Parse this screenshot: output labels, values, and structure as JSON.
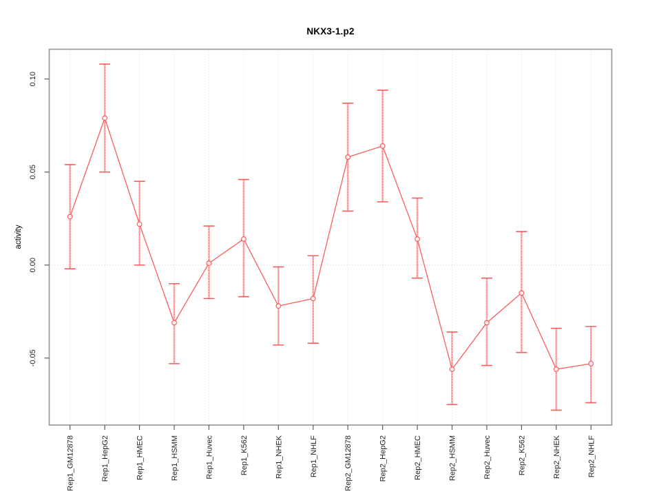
{
  "chart_data": {
    "type": "line",
    "title": "NKX3-1.p2",
    "xlabel": "",
    "ylabel": "activity",
    "legend_position": "none",
    "categories": [
      "Rep1_GM12878",
      "Rep1_HepG2",
      "Rep1_HMEC",
      "Rep1_HSMM",
      "Rep1_Huvec",
      "Rep1_K562",
      "Rep1_NHEK",
      "Rep1_NHLF",
      "Rep2_GM12878",
      "Rep2_HepG2",
      "Rep2_HMEC",
      "Rep2_HSMM",
      "Rep2_Huvec",
      "Rep2_K562",
      "Rep2_NHEK",
      "Rep2_NHLF"
    ],
    "series": [
      {
        "name": "activity",
        "values": [
          0.026,
          0.079,
          0.022,
          -0.031,
          0.001,
          0.014,
          -0.022,
          -0.018,
          0.058,
          0.064,
          0.014,
          -0.056,
          -0.031,
          -0.015,
          -0.056,
          -0.053
        ],
        "err_high": [
          0.054,
          0.108,
          0.045,
          -0.01,
          0.021,
          0.046,
          -0.001,
          0.005,
          0.087,
          0.094,
          0.036,
          -0.036,
          -0.007,
          0.018,
          -0.034,
          -0.033
        ],
        "err_low": [
          -0.002,
          0.05,
          0.0,
          -0.053,
          -0.018,
          -0.017,
          -0.043,
          -0.042,
          0.029,
          0.034,
          -0.007,
          -0.075,
          -0.054,
          -0.047,
          -0.078,
          -0.074
        ]
      }
    ],
    "ytick_labels": [
      "0.10",
      "0.05",
      "0.00",
      "-0.05"
    ],
    "ytick_values": [
      0.1,
      0.05,
      0.0,
      -0.05
    ],
    "ylim": [
      -0.086,
      0.116
    ],
    "grid": {
      "vertical_dotted_at_each_category": true,
      "horizontal_dotted_at_zero": true
    },
    "marker": "open-circle",
    "colors": {
      "series": "#f95c5c",
      "error_band": "#ffb0b0",
      "grid": "#d8d8d8",
      "zero_line": "#cccccc",
      "axis_box": "#9a9a9a",
      "tick": "#5a5a5a",
      "text": "#1f1f1f"
    }
  }
}
